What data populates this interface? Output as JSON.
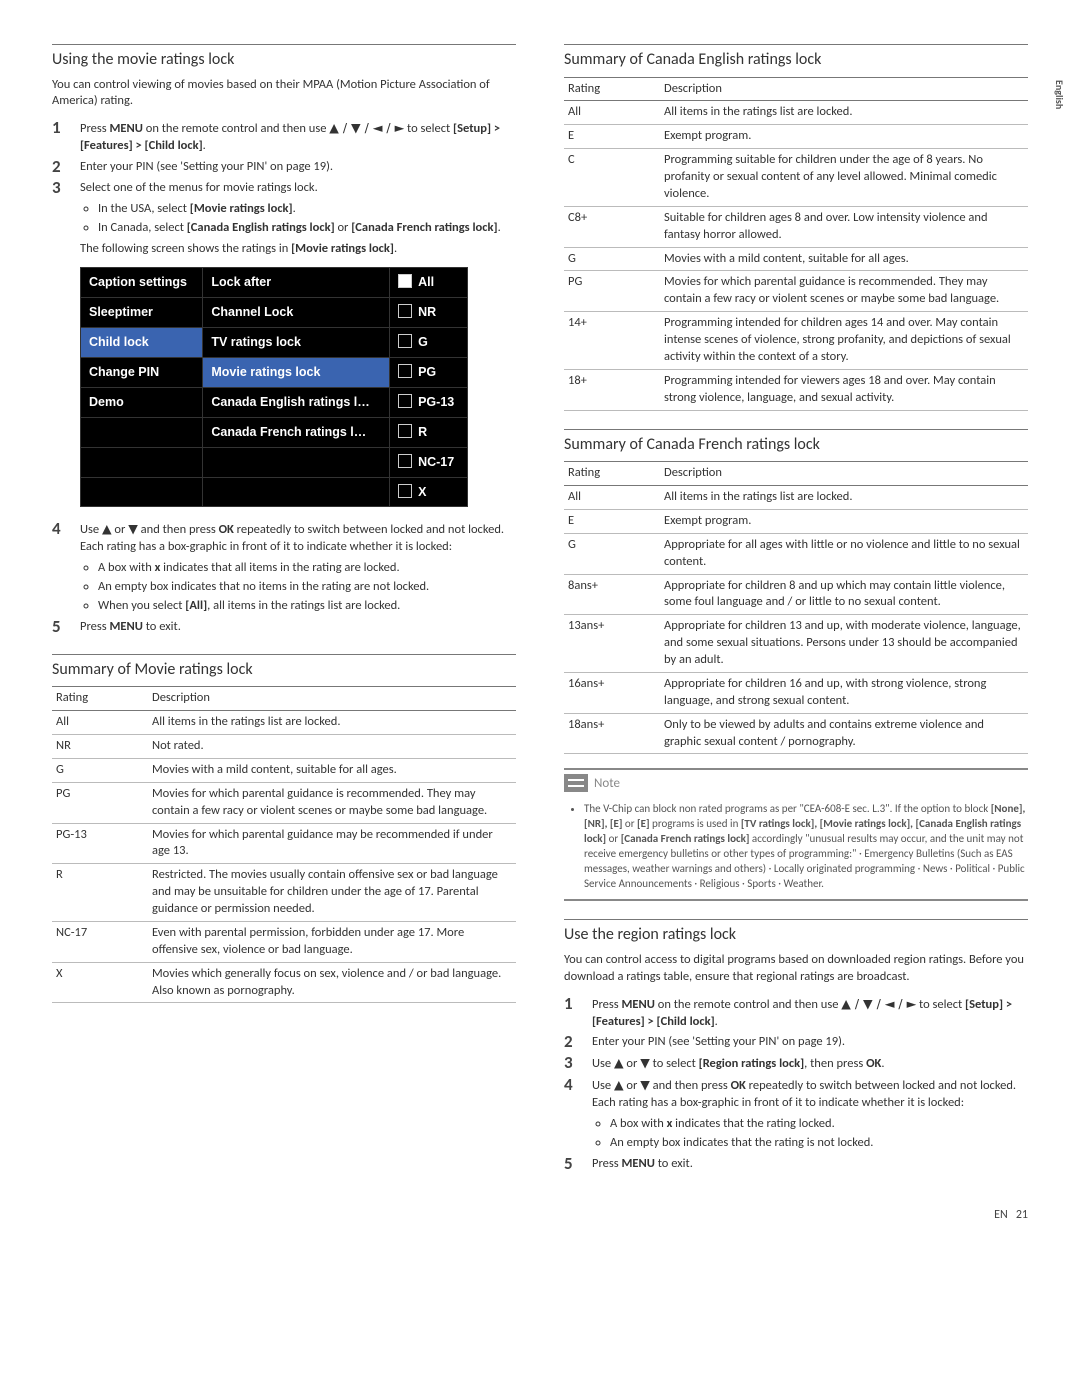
{
  "side_lang": "English",
  "left": {
    "h1": "Using the movie ratings lock",
    "intro": "You can control viewing of movies based on their MPAA (Motion Picture Association of America) rating.",
    "step1a": "Press ",
    "step1b": "MENU",
    "step1c": " on the remote control and then use ",
    "step1d": "▲ / ▼ / ◄ / ►",
    "step1e": " to select ",
    "step1f": "[Setup] > [Features] > [Child lock]",
    "step1g": ".",
    "step2": "Enter your PIN (see 'Setting your PIN' on page 19).",
    "step3": "Select one of the menus for movie ratings lock.",
    "step3b1a": "In the USA, select ",
    "step3b1b": "[Movie ratings lock]",
    "step3b1c": ".",
    "step3b2a": "In Canada, select ",
    "step3b2b": "[Canada English ratings lock]",
    "step3b2c": " or ",
    "step3b2d": "[Canada French ratings lock]",
    "step3b2e": ".",
    "step3fa": "The following screen shows the ratings in ",
    "step3fb": "[Movie ratings lock]",
    "step3fc": ".",
    "tv": {
      "c1": [
        "Caption settings",
        "Sleeptimer",
        "Child lock",
        "Change PIN",
        "Demo"
      ],
      "c2": [
        "Lock after",
        "Channel Lock",
        "TV ratings lock",
        "Movie ratings lock",
        "Canada English ratings l…",
        "Canada French ratings l…"
      ],
      "c3": [
        "All",
        "NR",
        "G",
        "PG",
        "PG-13",
        "R",
        "NC-17",
        "X"
      ]
    },
    "step4a": "Use ",
    "step4b": "▲",
    "step4c": " or ",
    "step4d": "▼",
    "step4e": " and then press ",
    "step4f": "OK",
    "step4g": " repeatedly to switch between locked and not locked. Each rating has a box-graphic in front of it to indicate whether it is locked:",
    "step4b1a": "A box with ",
    "step4b1b": "x",
    "step4b1c": " indicates that all items in the rating are locked.",
    "step4b2": "An empty box indicates that no items in the rating are not locked.",
    "step4b3a": "When you select ",
    "step4b3b": "[All]",
    "step4b3c": ", all items in the ratings list are locked.",
    "step5a": "Press ",
    "step5b": "MENU",
    "step5c": " to exit.",
    "movie_h": "Summary of Movie ratings lock",
    "th_rating": "Rating",
    "th_desc": "Description",
    "movie": [
      [
        "All",
        "All items in the ratings list are locked."
      ],
      [
        "NR",
        "Not rated."
      ],
      [
        "G",
        "Movies with a mild content, suitable for all ages."
      ],
      [
        "PG",
        "Movies for which parental guidance is recommended. They may contain a few racy or violent scenes or maybe some bad language."
      ],
      [
        "PG-13",
        "Movies for which parental guidance may be recommended if under age 13."
      ],
      [
        "R",
        "Restricted. The movies usually contain offensive sex or bad language and may be unsuitable for children under the age of 17. Parental guidance or permission needed."
      ],
      [
        "NC-17",
        "Even with parental permission, forbidden under age 17. More offensive sex, violence or bad language."
      ],
      [
        "X",
        "Movies which generally focus on sex, violence and / or bad language. Also known as pornography."
      ]
    ]
  },
  "right": {
    "h1": "Summary of Canada English ratings lock",
    "th_rating": "Rating",
    "th_desc": "Description",
    "eng": [
      [
        "All",
        "All items in the ratings list are locked."
      ],
      [
        "E",
        "Exempt program."
      ],
      [
        "C",
        "Programming suitable for children under the age of 8 years. No profanity or sexual content of any level allowed. Minimal comedic violence."
      ],
      [
        "C8+",
        "Suitable for children ages 8 and over. Low intensity violence and fantasy horror allowed."
      ],
      [
        "G",
        "Movies with a mild content, suitable for all ages."
      ],
      [
        "PG",
        "Movies for which parental guidance is recommended. They may contain a few racy or violent scenes or maybe some bad language."
      ],
      [
        "14+",
        "Programming intended for children ages 14 and over. May contain intense scenes of violence, strong profanity, and depictions of sexual activity within the context of a story."
      ],
      [
        "18+",
        "Programming intended for viewers ages 18 and over. May contain strong violence, language, and sexual activity."
      ]
    ],
    "h2": "Summary of Canada French ratings lock",
    "fr": [
      [
        "All",
        "All items in the ratings list are locked."
      ],
      [
        "E",
        "Exempt program."
      ],
      [
        "G",
        "Appropriate for all ages with little or no violence and little to no sexual content."
      ],
      [
        "8ans+",
        "Appropriate for children 8 and up which may contain little violence, some foul language and / or little to no sexual content."
      ],
      [
        "13ans+",
        "Appropriate for children 13 and up, with moderate violence, language, and some sexual situations. Persons under 13 should be accompanied by an adult."
      ],
      [
        "16ans+",
        "Appropriate for children 16 and up, with strong violence, strong language, and strong sexual content."
      ],
      [
        "18ans+",
        "Only to be viewed by adults and contains extreme violence and graphic sexual content / pornography."
      ]
    ],
    "note_label": "Note",
    "note_a": "The V-Chip can block non rated programs as per \"CEA-608-E sec. L.3\". If the option to block ",
    "note_b": "[None], [NR], [E]",
    "note_c": " or ",
    "note_d": "[E]",
    "note_e": " programs is used in ",
    "note_f": "[TV ratings lock], [Movie ratings lock], [Canada English ratings lock]",
    "note_g": " or ",
    "note_h": "[Canada French ratings lock]",
    "note_i": " accordingly \"unusual results may occur, and the unit may not receive emergency bulletins or other types of programming:\" · Emergency Bulletins (Such as EAS messages, weather warnings and others) · Locally originated programming · News · Political · Public Service Announcements · Religious · Sports · Weather.",
    "h3": "Use the region ratings lock",
    "intro3": "You can control access to digital programs based on downloaded region ratings. Before you download a ratings table, ensure that regional ratings are broadcast.",
    "r1a": "Press ",
    "r1b": "MENU",
    "r1c": " on the remote control and then use ",
    "r1d": "▲ / ▼ / ◄ / ►",
    "r1e": " to select ",
    "r1f": "[Setup] > [Features] > [Child lock]",
    "r1g": ".",
    "r2": "Enter your PIN (see 'Setting your PIN' on page 19).",
    "r3a": "Use ",
    "r3b": "▲",
    "r3c": " or ",
    "r3d": "▼",
    "r3e": " to select ",
    "r3f": "[Region ratings lock]",
    "r3g": ", then press ",
    "r3h": "OK",
    "r3i": ".",
    "r4a": "Use ",
    "r4b": "▲",
    "r4c": " or ",
    "r4d": "▼",
    "r4e": " and then press ",
    "r4f": "OK",
    "r4g": " repeatedly to switch between locked and not locked. Each rating has a box-graphic in front of it to indicate whether it is locked:",
    "r4b1a": "A box with ",
    "r4b1b": "x",
    "r4b1c": " indicates that the rating locked.",
    "r4b2": "An empty box indicates that the rating is not locked.",
    "r5a": "Press ",
    "r5b": "MENU",
    "r5c": " to exit."
  },
  "footer_lang": "EN",
  "footer_page": "21"
}
